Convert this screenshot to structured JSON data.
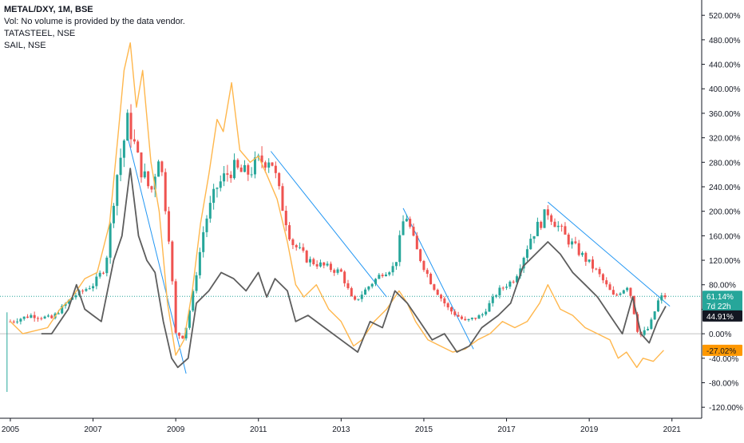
{
  "chart_data": {
    "type": "candlestick",
    "legend": {
      "main_symbol": "METAL/DXY, 1M, BSE",
      "volume_note": "Vol: No volume is provided by the data vendor.",
      "comparisons": [
        "TATASTEEL, NSE",
        "SAIL, NSE"
      ]
    },
    "y_axis": {
      "unit": "percent",
      "ticks": [
        520,
        480,
        440,
        400,
        360,
        320,
        280,
        240,
        200,
        160,
        120,
        80,
        40,
        0,
        -40,
        -80,
        -120
      ],
      "tick_labels": [
        "520.00%",
        "480.00%",
        "440.00%",
        "400.00%",
        "360.00%",
        "320.00%",
        "280.00%",
        "240.00%",
        "200.00%",
        "160.00%",
        "120.00%",
        "80.00%",
        "40.00%",
        "0.00%",
        "-40.00%",
        "-80.00%",
        "-120.00%"
      ],
      "ylim": [
        -138,
        545
      ]
    },
    "x_axis": {
      "ticks": [
        2005,
        2007,
        2009,
        2011,
        2013,
        2015,
        2017,
        2019,
        2021
      ],
      "tick_labels": [
        "2005",
        "2007",
        "2009",
        "2011",
        "2013",
        "2015",
        "2017",
        "2019",
        "2021"
      ],
      "xlim": [
        2004.75,
        2021.7
      ]
    },
    "badges": [
      {
        "label": "61.14%",
        "value": 61.14,
        "bg": "#26a69a",
        "fg": "#ffffff"
      },
      {
        "label": "7d 22h",
        "value": 46,
        "bg": "#26a69a",
        "fg": "#ffffff"
      },
      {
        "label": "44.91%",
        "value": 29,
        "bg": "#131722",
        "fg": "#ffffff"
      },
      {
        "label": "-27.02%",
        "value": -27.02,
        "bg": "#ff9800",
        "fg": "#131722"
      }
    ],
    "last_price_line": 61.14,
    "baseline_value": 0,
    "colors": {
      "up": "#26a69a",
      "down": "#ef5350",
      "tatasteel": "#ffb74d",
      "sail": "#5d5d5d",
      "trendline": "#2196f3",
      "grid_baseline": "#c0c0c0"
    },
    "series": [
      {
        "name": "METAL/DXY",
        "role": "main",
        "anchors": [
          [
            2005.0,
            20
          ],
          [
            2005.5,
            30
          ],
          [
            2006.0,
            25
          ],
          [
            2006.5,
            60
          ],
          [
            2007.0,
            80
          ],
          [
            2007.3,
            110
          ],
          [
            2007.55,
            250
          ],
          [
            2007.85,
            350
          ],
          [
            2008.1,
            280
          ],
          [
            2008.4,
            230
          ],
          [
            2008.6,
            300
          ],
          [
            2008.85,
            150
          ],
          [
            2009.0,
            0
          ],
          [
            2009.2,
            -5
          ],
          [
            2009.4,
            60
          ],
          [
            2009.7,
            180
          ],
          [
            2010.0,
            240
          ],
          [
            2010.35,
            270
          ],
          [
            2010.7,
            260
          ],
          [
            2011.0,
            280
          ],
          [
            2011.3,
            290
          ],
          [
            2011.5,
            230
          ],
          [
            2011.8,
            150
          ],
          [
            2012.2,
            120
          ],
          [
            2012.6,
            110
          ],
          [
            2013.0,
            100
          ],
          [
            2013.3,
            50
          ],
          [
            2013.7,
            80
          ],
          [
            2014.0,
            100
          ],
          [
            2014.3,
            110
          ],
          [
            2014.55,
            200
          ],
          [
            2014.8,
            140
          ],
          [
            2015.2,
            80
          ],
          [
            2015.6,
            40
          ],
          [
            2016.0,
            20
          ],
          [
            2016.4,
            30
          ],
          [
            2016.8,
            70
          ],
          [
            2017.2,
            90
          ],
          [
            2017.6,
            160
          ],
          [
            2018.0,
            200
          ],
          [
            2018.4,
            160
          ],
          [
            2018.8,
            130
          ],
          [
            2019.2,
            100
          ],
          [
            2019.6,
            60
          ],
          [
            2019.95,
            80
          ],
          [
            2020.2,
            -5
          ],
          [
            2020.45,
            10
          ],
          [
            2020.7,
            60
          ],
          [
            2020.85,
            61
          ]
        ]
      },
      {
        "name": "TATASTEEL",
        "role": "comparison",
        "points": [
          [
            2005.0,
            20
          ],
          [
            2005.3,
            0
          ],
          [
            2005.6,
            5
          ],
          [
            2005.9,
            10
          ],
          [
            2006.2,
            40
          ],
          [
            2006.5,
            60
          ],
          [
            2006.8,
            90
          ],
          [
            2007.1,
            100
          ],
          [
            2007.4,
            180
          ],
          [
            2007.6,
            320
          ],
          [
            2007.75,
            430
          ],
          [
            2007.9,
            475
          ],
          [
            2008.05,
            370
          ],
          [
            2008.2,
            430
          ],
          [
            2008.4,
            280
          ],
          [
            2008.6,
            200
          ],
          [
            2008.8,
            50
          ],
          [
            2009.0,
            -35
          ],
          [
            2009.2,
            -10
          ],
          [
            2009.4,
            70
          ],
          [
            2009.6,
            180
          ],
          [
            2009.8,
            260
          ],
          [
            2010.0,
            350
          ],
          [
            2010.15,
            330
          ],
          [
            2010.35,
            410
          ],
          [
            2010.55,
            300
          ],
          [
            2010.8,
            280
          ],
          [
            2011.0,
            290
          ],
          [
            2011.2,
            260
          ],
          [
            2011.45,
            220
          ],
          [
            2011.7,
            150
          ],
          [
            2011.9,
            80
          ],
          [
            2012.1,
            60
          ],
          [
            2012.4,
            80
          ],
          [
            2012.7,
            40
          ],
          [
            2013.0,
            20
          ],
          [
            2013.3,
            -20
          ],
          [
            2013.5,
            -10
          ],
          [
            2013.8,
            20
          ],
          [
            2014.1,
            40
          ],
          [
            2014.4,
            70
          ],
          [
            2014.6,
            50
          ],
          [
            2014.8,
            20
          ],
          [
            2015.1,
            -10
          ],
          [
            2015.4,
            -20
          ],
          [
            2015.7,
            -30
          ],
          [
            2016.0,
            -25
          ],
          [
            2016.3,
            -10
          ],
          [
            2016.6,
            0
          ],
          [
            2016.9,
            20
          ],
          [
            2017.2,
            10
          ],
          [
            2017.5,
            20
          ],
          [
            2017.8,
            50
          ],
          [
            2018.0,
            80
          ],
          [
            2018.3,
            40
          ],
          [
            2018.6,
            30
          ],
          [
            2018.9,
            10
          ],
          [
            2019.2,
            0
          ],
          [
            2019.5,
            -10
          ],
          [
            2019.7,
            -40
          ],
          [
            2019.9,
            -30
          ],
          [
            2020.15,
            -55
          ],
          [
            2020.3,
            -40
          ],
          [
            2020.55,
            -45
          ],
          [
            2020.8,
            -27
          ]
        ]
      },
      {
        "name": "SAIL",
        "role": "comparison",
        "points": [
          [
            2005.75,
            0
          ],
          [
            2006.0,
            0
          ],
          [
            2006.2,
            20
          ],
          [
            2006.4,
            40
          ],
          [
            2006.6,
            80
          ],
          [
            2006.8,
            40
          ],
          [
            2007.0,
            30
          ],
          [
            2007.2,
            20
          ],
          [
            2007.5,
            120
          ],
          [
            2007.7,
            160
          ],
          [
            2007.9,
            270
          ],
          [
            2008.1,
            160
          ],
          [
            2008.3,
            120
          ],
          [
            2008.5,
            100
          ],
          [
            2008.7,
            20
          ],
          [
            2008.9,
            -40
          ],
          [
            2009.05,
            -55
          ],
          [
            2009.3,
            -40
          ],
          [
            2009.5,
            50
          ],
          [
            2009.8,
            70
          ],
          [
            2010.1,
            100
          ],
          [
            2010.4,
            90
          ],
          [
            2010.7,
            70
          ],
          [
            2011.0,
            100
          ],
          [
            2011.2,
            60
          ],
          [
            2011.4,
            90
          ],
          [
            2011.7,
            70
          ],
          [
            2011.9,
            20
          ],
          [
            2012.2,
            30
          ],
          [
            2012.6,
            10
          ],
          [
            2013.0,
            -10
          ],
          [
            2013.4,
            -30
          ],
          [
            2013.7,
            20
          ],
          [
            2014.0,
            10
          ],
          [
            2014.3,
            70
          ],
          [
            2014.6,
            50
          ],
          [
            2014.9,
            20
          ],
          [
            2015.2,
            -10
          ],
          [
            2015.5,
            0
          ],
          [
            2015.8,
            -30
          ],
          [
            2016.1,
            -20
          ],
          [
            2016.4,
            10
          ],
          [
            2016.8,
            30
          ],
          [
            2017.1,
            50
          ],
          [
            2017.4,
            110
          ],
          [
            2017.7,
            130
          ],
          [
            2018.0,
            150
          ],
          [
            2018.3,
            130
          ],
          [
            2018.6,
            100
          ],
          [
            2018.9,
            80
          ],
          [
            2019.2,
            60
          ],
          [
            2019.5,
            30
          ],
          [
            2019.8,
            0
          ],
          [
            2020.05,
            60
          ],
          [
            2020.25,
            0
          ],
          [
            2020.45,
            -15
          ],
          [
            2020.65,
            20
          ],
          [
            2020.85,
            45
          ]
        ]
      }
    ],
    "trendlines": [
      {
        "from": [
          2007.85,
          318
        ],
        "to": [
          2009.25,
          -65
        ]
      },
      {
        "from": [
          2011.3,
          298
        ],
        "to": [
          2014.1,
          60
        ]
      },
      {
        "from": [
          2014.5,
          205
        ],
        "to": [
          2016.2,
          -25
        ]
      },
      {
        "from": [
          2018.0,
          215
        ],
        "to": [
          2020.95,
          45
        ]
      }
    ],
    "early_wick": {
      "x": 2004.92,
      "low": -95,
      "high": 35
    }
  }
}
